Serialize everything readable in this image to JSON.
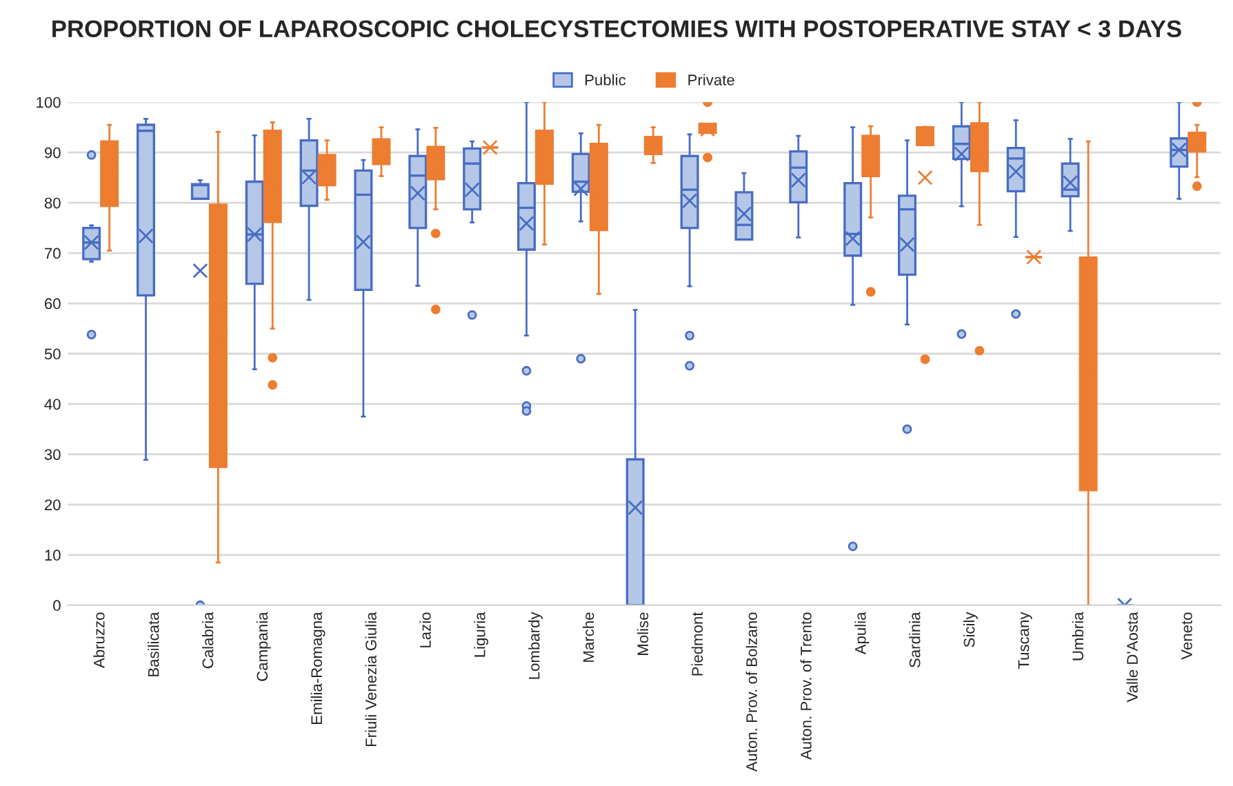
{
  "chart_data": {
    "type": "box",
    "title": "PROPORTION OF LAPAROSCOPIC CHOLECYSTECTOMIES WITH POSTOPERATIVE STAY < 3 DAYS",
    "categories": [
      "Abruzzo",
      "Basilicata",
      "Calabria",
      "Campania",
      "Emilia-Romagna",
      "Friuli Venezia Giulia",
      "Lazio",
      "Liguria",
      "Lombardy",
      "Marche",
      "Molise",
      "Piedmont",
      "Auton. Prov. of Bolzano",
      "Auton. Prov. of Trento",
      "Apulia",
      "Sardinia",
      "Sicily",
      "Tuscany",
      "Umbria",
      "Valle D'Aosta",
      "Veneto"
    ],
    "ylim": [
      0,
      100
    ],
    "yticks": [
      0,
      10,
      20,
      30,
      40,
      50,
      60,
      70,
      80,
      90,
      100
    ],
    "grid": "y",
    "legend": "top",
    "series": [
      {
        "name": "Public",
        "color": "#b4c7e7",
        "boxes": [
          {
            "low": 68.3,
            "q1": 68.8,
            "median": 72.1,
            "q3": 75.0,
            "high": 75.5,
            "mean": 72.1,
            "outliers": [
              89.5,
              53.8
            ]
          },
          {
            "low": 28.9,
            "q1": 61.6,
            "median": 94.3,
            "q3": 95.5,
            "high": 96.7,
            "mean": 73.4
          },
          {
            "low": 80.8,
            "q1": 80.8,
            "median": 83.5,
            "q3": 83.7,
            "high": 84.5,
            "mean": 66.5,
            "outliers": [
              0
            ]
          },
          {
            "low": 46.9,
            "q1": 63.9,
            "median": 73.7,
            "q3": 84.2,
            "high": 93.4,
            "mean": 73.7
          },
          {
            "low": 60.7,
            "q1": 79.4,
            "median": 86.4,
            "q3": 92.4,
            "high": 96.7,
            "mean": 85.1
          },
          {
            "low": 37.5,
            "q1": 62.7,
            "median": 81.6,
            "q3": 86.4,
            "high": 88.5,
            "mean": 72.2
          },
          {
            "low": 63.5,
            "q1": 75.0,
            "median": 85.4,
            "q3": 89.3,
            "high": 94.6,
            "mean": 81.9
          },
          {
            "low": 76.1,
            "q1": 78.7,
            "median": 87.8,
            "q3": 90.8,
            "high": 92.2,
            "mean": 82.6,
            "outliers": [
              57.7
            ]
          },
          {
            "low": 53.6,
            "q1": 70.7,
            "median": 79.0,
            "q3": 83.9,
            "high": 100,
            "mean": 75.9,
            "outliers": [
              46.6,
              39.6,
              38.6
            ]
          },
          {
            "low": 76.3,
            "q1": 82.2,
            "median": 84.2,
            "q3": 89.7,
            "high": 93.8,
            "mean": 82.8,
            "outliers": [
              49.0
            ]
          },
          {
            "low": 0,
            "q1": 0,
            "median": 0,
            "q3": 29.0,
            "high": 58.7,
            "mean": 19.4
          },
          {
            "low": 63.4,
            "q1": 75.0,
            "median": 82.6,
            "q3": 89.3,
            "high": 93.6,
            "mean": 80.4,
            "outliers": [
              53.6,
              47.6
            ]
          },
          {
            "low": 72.7,
            "q1": 72.7,
            "median": 75.6,
            "q3": 82.1,
            "high": 85.9,
            "mean": 77.8
          },
          {
            "low": 73.1,
            "q1": 80.1,
            "median": 87.0,
            "q3": 90.2,
            "high": 93.3,
            "mean": 84.5
          },
          {
            "low": 59.7,
            "q1": 69.5,
            "median": 73.8,
            "q3": 83.9,
            "high": 95.0,
            "mean": 72.9,
            "outliers": [
              11.7
            ]
          },
          {
            "low": 55.8,
            "q1": 65.7,
            "median": 78.7,
            "q3": 81.4,
            "high": 92.4,
            "mean": 71.7,
            "outliers": [
              35.0
            ]
          },
          {
            "low": 79.3,
            "q1": 88.7,
            "median": 91.7,
            "q3": 95.2,
            "high": 100,
            "mean": 89.7,
            "outliers": [
              53.9
            ]
          },
          {
            "low": 73.2,
            "q1": 82.3,
            "median": 88.8,
            "q3": 90.9,
            "high": 96.4,
            "mean": 86.2,
            "outliers": [
              57.9
            ]
          },
          {
            "low": 74.4,
            "q1": 81.3,
            "median": 82.6,
            "q3": 87.8,
            "high": 92.7,
            "mean": 84.0
          },
          {
            "low": 0,
            "q1": 0,
            "median": 0,
            "q3": 0,
            "high": 0,
            "mean": 0
          },
          {
            "low": 80.8,
            "q1": 87.2,
            "median": 90.5,
            "q3": 92.8,
            "high": 100,
            "mean": 90.5
          }
        ]
      },
      {
        "name": "Private",
        "color": "#ed7d31",
        "boxes": [
          {
            "low": 70.5,
            "q1": 79.4,
            "median": 88.3,
            "q3": 92.2,
            "high": 95.5,
            "mean": 85.1
          },
          null,
          {
            "low": 8.5,
            "q1": 27.5,
            "median": 59.2,
            "q3": 79.6,
            "high": 94.1,
            "mean": 53.3
          },
          {
            "low": 55.0,
            "q1": 76.2,
            "median": 89.1,
            "q3": 94.3,
            "high": 96.0,
            "mean": 82.6,
            "outliers": [
              49.2,
              43.8
            ]
          },
          {
            "low": 80.6,
            "q1": 83.5,
            "median": 87.0,
            "q3": 89.5,
            "high": 92.4,
            "mean": 86.7
          },
          {
            "low": 85.3,
            "q1": 87.7,
            "median": 90.3,
            "q3": 92.6,
            "high": 95.0,
            "mean": 90.3
          },
          {
            "low": 78.7,
            "q1": 84.7,
            "median": 88.8,
            "q3": 91.1,
            "high": 94.9,
            "mean": 86.1,
            "outliers": [
              73.9,
              58.8
            ]
          },
          {
            "low": 91.0,
            "q1": 91.0,
            "median": 91.0,
            "q3": 91.0,
            "high": 91.0,
            "mean": 91.0
          },
          {
            "low": 71.7,
            "q1": 83.8,
            "median": 88.5,
            "q3": 94.3,
            "high": 100,
            "mean": 88.5
          },
          {
            "low": 61.9,
            "q1": 74.6,
            "median": 87.6,
            "q3": 91.7,
            "high": 95.5,
            "mean": 81.7
          },
          {
            "low": 87.9,
            "q1": 89.7,
            "median": 92.2,
            "q3": 93.1,
            "high": 95.0,
            "mean": 91.4
          },
          {
            "low": 93.9,
            "q1": 93.9,
            "median": 94.8,
            "q3": 95.7,
            "high": 95.7,
            "mean": 94.6,
            "outliers": [
              100,
              89.0
            ]
          },
          null,
          null,
          {
            "low": 77.1,
            "q1": 85.3,
            "median": 89.7,
            "q3": 93.3,
            "high": 95.2,
            "mean": 86.7,
            "outliers": [
              62.3
            ]
          },
          {
            "low": 91.5,
            "q1": 91.5,
            "median": 94.8,
            "q3": 95.0,
            "high": 95.1,
            "mean": 85.0,
            "outliers": [
              48.9
            ]
          },
          {
            "low": 75.6,
            "q1": 86.3,
            "median": 93.0,
            "q3": 95.8,
            "high": 100,
            "mean": 89.3,
            "outliers": [
              50.6
            ]
          },
          {
            "low": 69.2,
            "q1": 69.2,
            "median": 69.2,
            "q3": 69.2,
            "high": 69.2,
            "mean": 69.2
          },
          {
            "low": 0,
            "q1": 22.9,
            "median": 46.0,
            "q3": 69.1,
            "high": 92.2,
            "mean": 46.0
          },
          null,
          {
            "low": 85.1,
            "q1": 90.2,
            "median": 92.8,
            "q3": 93.9,
            "high": 95.5,
            "mean": 92.0,
            "outliers": [
              100,
              83.3
            ]
          }
        ]
      }
    ]
  }
}
